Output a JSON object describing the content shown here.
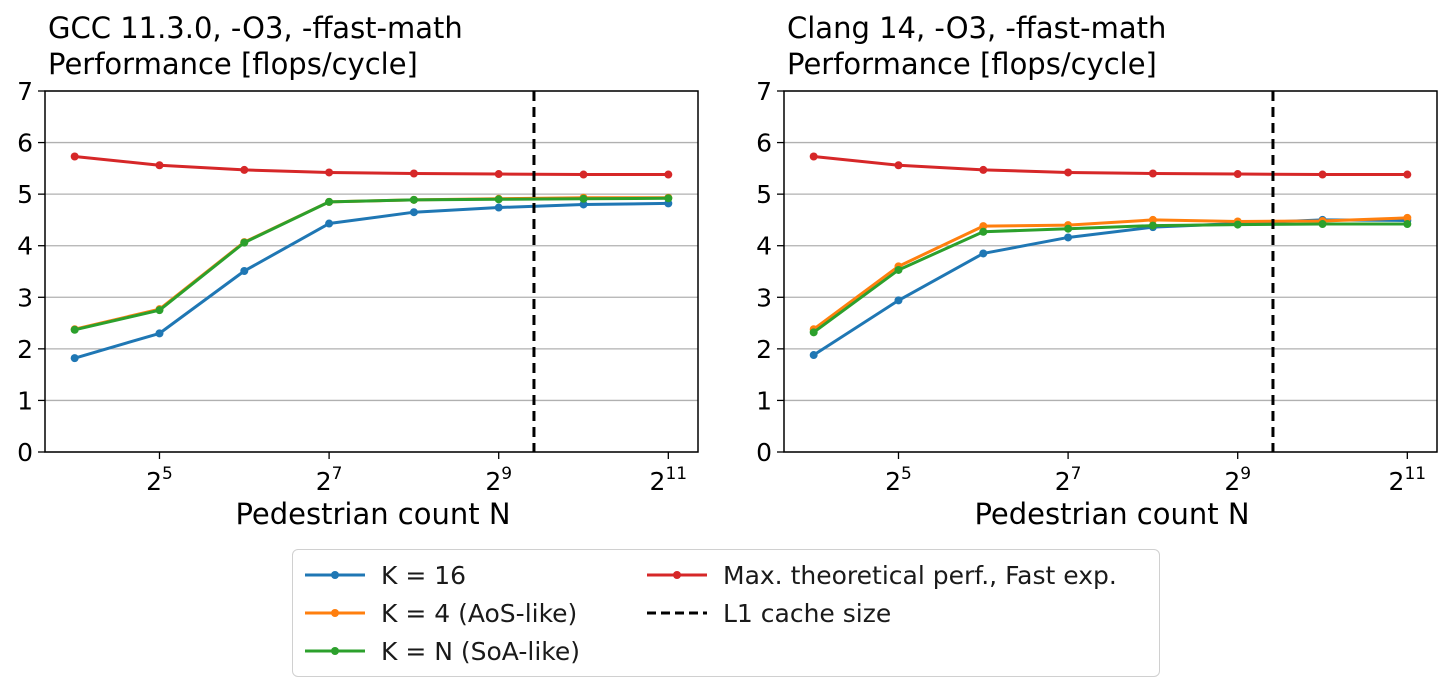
{
  "chart_data": [
    {
      "type": "line",
      "title": "GCC 11.3.0, -O3, -ffast-math",
      "subtitle": "Performance [flops/cycle]",
      "xlabel": "Pedestrian count N",
      "ylabel": "",
      "xscale": "log2",
      "x": [
        16,
        32,
        64,
        128,
        256,
        512,
        1024,
        2048
      ],
      "x_ticks": [
        {
          "base": "2",
          "exp": "5"
        },
        {
          "base": "2",
          "exp": "7"
        },
        {
          "base": "2",
          "exp": "9"
        },
        {
          "base": "2",
          "exp": "11"
        }
      ],
      "x_tick_values": [
        32,
        128,
        512,
        2048
      ],
      "ylim": [
        0,
        7
      ],
      "y_ticks": [
        "0",
        "1",
        "2",
        "3",
        "4",
        "5",
        "6",
        "7"
      ],
      "grid": "horizontal",
      "series": [
        {
          "name": "K = 16",
          "color": "#1f77b4",
          "values": [
            1.82,
            2.3,
            3.51,
            4.43,
            4.65,
            4.74,
            4.8,
            4.82
          ]
        },
        {
          "name": "K = 4 (AoS-like)",
          "color": "#ff7f0e",
          "values": [
            2.38,
            2.77,
            4.07,
            4.85,
            4.89,
            4.91,
            4.93,
            4.93
          ]
        },
        {
          "name": "K = N (SoA-like)",
          "color": "#2ca02c",
          "values": [
            2.37,
            2.75,
            4.06,
            4.85,
            4.89,
            4.9,
            4.91,
            4.92
          ]
        },
        {
          "name": "Max. theoretical perf., Fast exp.",
          "color": "#d62728",
          "values": [
            5.73,
            5.56,
            5.47,
            5.42,
            5.4,
            5.39,
            5.38,
            5.38
          ]
        }
      ],
      "vline": {
        "name": "L1 cache size",
        "x": 683,
        "color": "#000000",
        "style": "dashed"
      }
    },
    {
      "type": "line",
      "title": "Clang 14, -O3, -ffast-math",
      "subtitle": "Performance [flops/cycle]",
      "xlabel": "Pedestrian count N",
      "ylabel": "",
      "xscale": "log2",
      "x": [
        16,
        32,
        64,
        128,
        256,
        512,
        1024,
        2048
      ],
      "x_ticks": [
        {
          "base": "2",
          "exp": "5"
        },
        {
          "base": "2",
          "exp": "7"
        },
        {
          "base": "2",
          "exp": "9"
        },
        {
          "base": "2",
          "exp": "11"
        }
      ],
      "x_tick_values": [
        32,
        128,
        512,
        2048
      ],
      "ylim": [
        0,
        7
      ],
      "y_ticks": [
        "0",
        "1",
        "2",
        "3",
        "4",
        "5",
        "6",
        "7"
      ],
      "grid": "horizontal",
      "series": [
        {
          "name": "K = 16",
          "color": "#1f77b4",
          "values": [
            1.88,
            2.94,
            3.85,
            4.16,
            4.36,
            4.43,
            4.5,
            4.49
          ]
        },
        {
          "name": "K = 4 (AoS-like)",
          "color": "#ff7f0e",
          "values": [
            2.38,
            3.6,
            4.38,
            4.4,
            4.5,
            4.47,
            4.48,
            4.54
          ]
        },
        {
          "name": "K = N (SoA-like)",
          "color": "#2ca02c",
          "values": [
            2.32,
            3.53,
            4.27,
            4.33,
            4.39,
            4.41,
            4.42,
            4.42
          ]
        },
        {
          "name": "Max. theoretical perf., Fast exp.",
          "color": "#d62728",
          "values": [
            5.73,
            5.56,
            5.47,
            5.42,
            5.4,
            5.39,
            5.38,
            5.38
          ]
        }
      ],
      "vline": {
        "name": "L1 cache size",
        "x": 683,
        "color": "#000000",
        "style": "dashed"
      }
    }
  ],
  "legend": {
    "placement": "bottom-center",
    "items": [
      {
        "label": "K = 16",
        "color": "#1f77b4",
        "style": "line-marker"
      },
      {
        "label": "K = 4 (AoS-like)",
        "color": "#ff7f0e",
        "style": "line-marker"
      },
      {
        "label": "K = N (SoA-like)",
        "color": "#2ca02c",
        "style": "line-marker"
      },
      {
        "label": "Max. theoretical perf., Fast exp.",
        "color": "#d62728",
        "style": "line-marker"
      },
      {
        "label": "L1 cache size",
        "color": "#000000",
        "style": "dashed"
      }
    ]
  }
}
